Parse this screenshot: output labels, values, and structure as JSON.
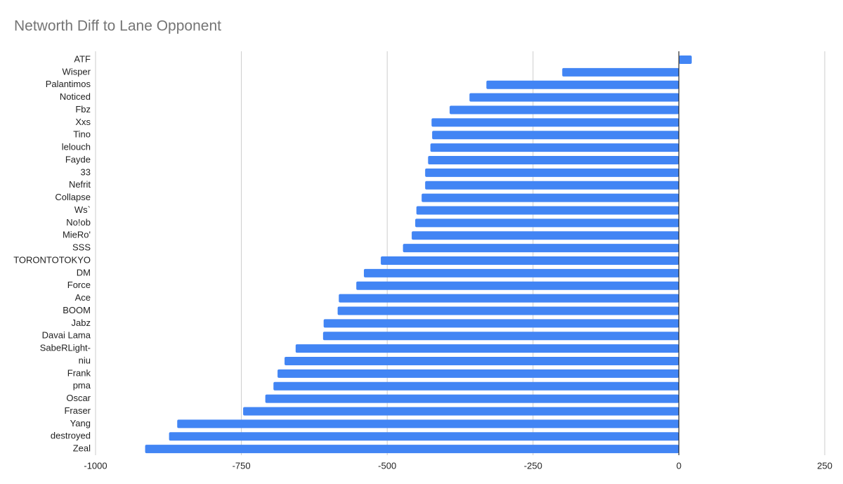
{
  "chart_data": {
    "type": "hbar",
    "title": "Networth Diff to Lane Opponent",
    "categories": [
      "ATF",
      "Wisper",
      "Palantimos",
      "Noticed",
      "Fbz",
      "Xxs",
      "Tino",
      "lelouch",
      "Fayde",
      "33",
      "Nefrit",
      "Collapse",
      "Ws`",
      "No!ob",
      "MieRo'",
      "SSS",
      "TORONTOTOKYO",
      "DM",
      "Force",
      "Ace",
      "BOOM",
      "Jabz",
      "Davai Lama",
      "SabeRLight-",
      "niu",
      "Frank",
      "pma",
      "Oscar",
      "Fraser",
      "Yang",
      "destroyed",
      "Zeal"
    ],
    "values": [
      22,
      -200,
      -330,
      -359,
      -393,
      -424,
      -423,
      -426,
      -430,
      -435,
      -435,
      -441,
      -450,
      -452,
      -458,
      -473,
      -511,
      -540,
      -553,
      -583,
      -585,
      -609,
      -610,
      -657,
      -676,
      -688,
      -695,
      -709,
      -747,
      -860,
      -874,
      -915
    ],
    "color": "#4285f4",
    "xlim": [
      -1000,
      250
    ],
    "xticks": [
      -1000,
      -750,
      -500,
      -250,
      0,
      250
    ],
    "grid": true
  }
}
